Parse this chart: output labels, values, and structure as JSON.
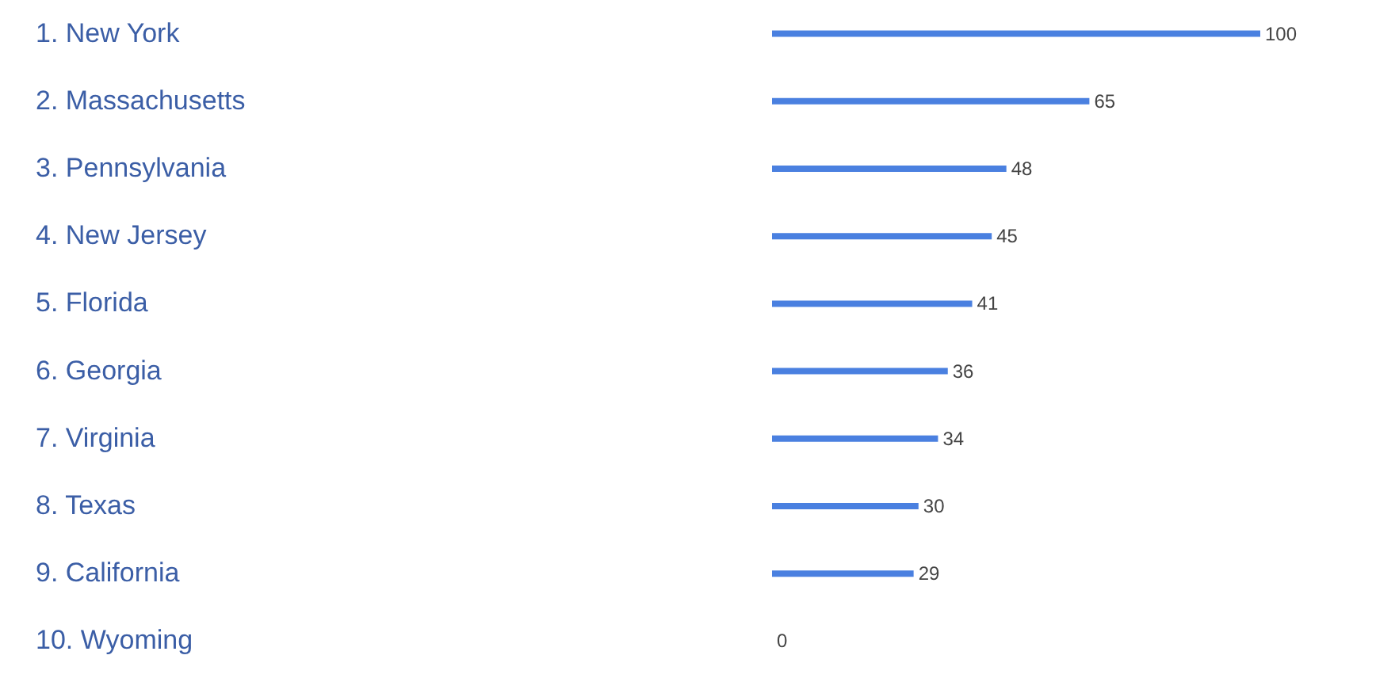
{
  "chart_data": {
    "type": "bar",
    "orientation": "horizontal",
    "categories": [
      "1. New York",
      "2. Massachusetts",
      "3. Pennsylvania",
      "4. New Jersey",
      "5. Florida",
      "6. Georgia",
      "7. Virginia",
      "8. Texas",
      "9. California",
      "10. Wyoming"
    ],
    "values": [
      100,
      65,
      48,
      45,
      41,
      36,
      34,
      30,
      29,
      0
    ],
    "color": "#4a80e0",
    "data_labels": true
  }
}
